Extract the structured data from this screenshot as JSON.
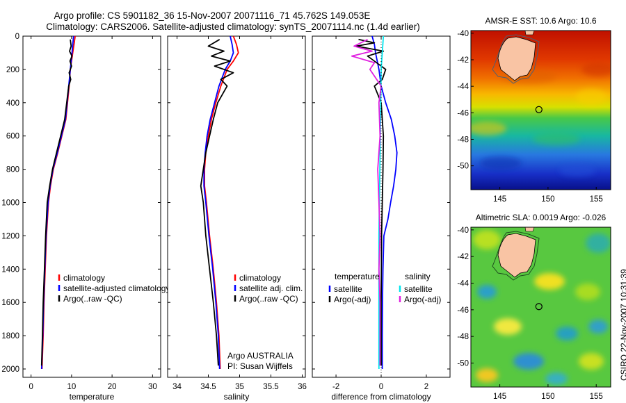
{
  "header": {
    "line1": "Argo profile: CS 5901182_36 15-Nov-2007 20071116_71 45.762S 149.053E",
    "line2": "Climatology: CARS2006. Satellite-adjusted climatology: synTS_20071114.nc (1.4d earlier)"
  },
  "stamp": "CSIRO 22-Nov-2007 10:31:39",
  "colors": {
    "clim": "#ff0000",
    "sat": "#0000ff",
    "argo": "#000000",
    "sal_sat": "#00e5ee",
    "sal_argo": "#e020e0"
  },
  "chart_data": [
    {
      "type": "line",
      "id": "temperature",
      "xlabel": "temperature",
      "ylabel": "",
      "xlim": [
        -2,
        32
      ],
      "ylim": [
        2050,
        0
      ],
      "xticks": [
        0,
        10,
        20,
        30
      ],
      "yticks": [
        0,
        200,
        400,
        600,
        800,
        1000,
        1200,
        1400,
        1600,
        1800,
        2000
      ],
      "xtick_labels": [
        "0",
        "10",
        "20",
        "30"
      ],
      "ytick_labels": [
        "0",
        "200",
        "400",
        "600",
        "800",
        "1000",
        "1200",
        "1400",
        "1600",
        "1800",
        "2000"
      ],
      "legend": [
        "climatology",
        "satellite-adjusted climatology",
        "Argo(..raw -QC)"
      ],
      "series": [
        {
          "name": "climatology",
          "color": "#ff0000",
          "x": [
            10.9,
            10.6,
            10.3,
            10.0,
            9.7,
            9.4,
            9.0,
            8.6,
            7.6,
            6.6,
            5.5,
            4.8,
            4.3,
            3.8,
            3.5,
            3.2,
            3.0,
            2.7
          ],
          "y": [
            0,
            50,
            100,
            150,
            200,
            300,
            400,
            500,
            600,
            700,
            800,
            900,
            1000,
            1200,
            1400,
            1600,
            1800,
            2000
          ]
        },
        {
          "name": "satellite-adjusted climatology",
          "color": "#0000ff",
          "x": [
            10.5,
            10.3,
            10.1,
            9.9,
            9.7,
            9.3,
            8.9,
            8.5,
            7.5,
            6.5,
            5.4,
            4.7,
            4.2,
            3.7,
            3.4,
            3.1,
            2.9,
            2.6
          ],
          "y": [
            0,
            50,
            100,
            150,
            200,
            300,
            400,
            500,
            600,
            700,
            800,
            900,
            1000,
            1200,
            1400,
            1600,
            1800,
            2000
          ]
        },
        {
          "name": "Argo(..raw -QC)",
          "color": "#000000",
          "x": [
            9.7,
            9.9,
            9.5,
            10.1,
            9.6,
            10.0,
            9.4,
            9.8,
            9.3,
            8.8,
            8.3,
            7.3,
            6.3,
            5.3,
            4.6,
            4.0,
            3.6,
            3.3,
            3.0,
            2.8,
            2.6
          ],
          "y": [
            20,
            60,
            90,
            120,
            150,
            180,
            220,
            260,
            300,
            400,
            500,
            600,
            700,
            800,
            900,
            1000,
            1200,
            1400,
            1600,
            1800,
            1980
          ]
        }
      ]
    },
    {
      "type": "line",
      "id": "salinity",
      "xlabel": "salinity",
      "xlim": [
        33.85,
        36.05
      ],
      "ylim": [
        2050,
        0
      ],
      "xticks": [
        34,
        34.5,
        35,
        35.5,
        36
      ],
      "xtick_labels": [
        "34",
        "34.5",
        "35",
        "35.5",
        "36"
      ],
      "legend": [
        "climatology",
        "satellite adj. clim.",
        "Argo(..raw -QC)"
      ],
      "annotation": [
        "Argo AUSTRALIA",
        "PI: Susan Wijffels"
      ],
      "series": [
        {
          "name": "climatology",
          "color": "#ff0000",
          "x": [
            34.9,
            34.95,
            34.98,
            34.9,
            34.8,
            34.7,
            34.62,
            34.55,
            34.5,
            34.46,
            34.44,
            34.44,
            34.47,
            34.52,
            34.58,
            34.63,
            34.67,
            34.69
          ],
          "y": [
            0,
            50,
            100,
            150,
            200,
            300,
            400,
            500,
            600,
            700,
            800,
            900,
            1000,
            1200,
            1400,
            1600,
            1800,
            2000
          ]
        },
        {
          "name": "satellite adj. clim.",
          "color": "#0000ff",
          "x": [
            34.85,
            34.88,
            34.9,
            34.85,
            34.77,
            34.67,
            34.6,
            34.53,
            34.48,
            34.45,
            34.43,
            34.43,
            34.46,
            34.51,
            34.57,
            34.62,
            34.66,
            34.68
          ],
          "y": [
            0,
            50,
            100,
            150,
            200,
            300,
            400,
            500,
            600,
            700,
            800,
            900,
            1000,
            1200,
            1400,
            1600,
            1800,
            2000
          ]
        },
        {
          "name": "Argo(..raw -QC)",
          "color": "#000000",
          "x": [
            34.68,
            34.5,
            34.75,
            34.55,
            34.85,
            34.6,
            34.9,
            34.7,
            34.8,
            34.65,
            34.58,
            34.52,
            34.46,
            34.42,
            34.38,
            34.42,
            34.46,
            34.52,
            34.58,
            34.63,
            34.66
          ],
          "y": [
            20,
            60,
            90,
            120,
            150,
            180,
            220,
            260,
            300,
            400,
            500,
            600,
            700,
            800,
            900,
            1000,
            1200,
            1400,
            1600,
            1800,
            1980
          ]
        }
      ]
    },
    {
      "type": "line",
      "id": "difference",
      "xlabel": "difference from climatology",
      "xlim": [
        -3.05,
        3.05
      ],
      "ylim": [
        2050,
        0
      ],
      "xticks": [
        -2,
        0,
        2
      ],
      "xtick_labels": [
        "-2",
        "0",
        "2"
      ],
      "legend_headers": [
        "temperature",
        "salinity"
      ],
      "legend_left": [
        "satellite",
        "Argo(-adj)"
      ],
      "legend_right": [
        "satellite",
        "Argo(-adj)"
      ],
      "series": [
        {
          "name": "temperature satellite",
          "color": "#0000ff",
          "x": [
            -0.4,
            -0.3,
            -0.25,
            -0.1,
            0.0,
            0.2,
            0.45,
            0.6,
            0.7,
            0.65,
            0.55,
            0.42,
            0.3,
            0.12,
            0.08,
            0.06,
            0.05,
            0.05
          ],
          "y": [
            0,
            50,
            100,
            200,
            300,
            400,
            500,
            600,
            700,
            800,
            900,
            1000,
            1100,
            1200,
            1400,
            1600,
            1800,
            2000
          ]
        },
        {
          "name": "temperature Argo(-adj)",
          "color": "#000000",
          "x": [
            -1.0,
            -0.3,
            -1.1,
            0.1,
            -0.6,
            -0.2,
            0.2,
            0.05,
            -0.3,
            0.0,
            0.1,
            0.08,
            0.05,
            0.02,
            0.0,
            0.0
          ],
          "y": [
            20,
            40,
            60,
            90,
            120,
            160,
            200,
            260,
            300,
            400,
            600,
            800,
            1000,
            1200,
            1600,
            1980
          ]
        },
        {
          "name": "salinity satellite",
          "color": "#00e5ee",
          "x": [
            0.1,
            0.05,
            0.0,
            -0.02,
            -0.04,
            -0.06,
            -0.08,
            -0.1,
            -0.1,
            -0.1,
            -0.1,
            -0.1,
            -0.1
          ],
          "y": [
            0,
            100,
            200,
            400,
            600,
            800,
            1000,
            1200,
            1400,
            1600,
            1800,
            1900,
            2000
          ]
        },
        {
          "name": "salinity Argo(-adj)",
          "color": "#e020e0",
          "x": [
            -0.6,
            -1.2,
            -0.4,
            -1.3,
            -0.3,
            -0.5,
            -0.2,
            0.0,
            -0.1,
            -0.05,
            -0.15,
            -0.1,
            -0.05,
            -0.1,
            -0.05,
            -0.05
          ],
          "y": [
            20,
            60,
            90,
            120,
            160,
            200,
            260,
            300,
            400,
            600,
            800,
            1000,
            1200,
            1400,
            1600,
            1980
          ]
        }
      ]
    },
    {
      "type": "heatmap",
      "id": "sst_map",
      "title": "AMSR-E SST: 10.6 Argo: 10.6",
      "xlim": [
        142,
        156.5
      ],
      "ylim": [
        -51.8,
        -39.8
      ],
      "xticks": [
        145,
        150,
        155
      ],
      "xtick_labels": [
        "145",
        "150",
        "155"
      ],
      "yticks": [
        -40,
        -42,
        -44,
        -46,
        -48,
        -50
      ],
      "ytick_labels": [
        "-40",
        "-42",
        "-44",
        "-46",
        "-48",
        "-50"
      ],
      "marker": {
        "lon": 149.053,
        "lat": -45.762
      }
    },
    {
      "type": "heatmap",
      "id": "sla_map",
      "title": "Altimetric SLA: 0.0019 Argo: -0.026",
      "xlim": [
        142,
        156.5
      ],
      "ylim": [
        -51.8,
        -39.8
      ],
      "xticks": [
        145,
        150,
        155
      ],
      "xtick_labels": [
        "145",
        "150",
        "155"
      ],
      "yticks": [
        -40,
        -42,
        -44,
        -46,
        -48,
        -50
      ],
      "ytick_labels": [
        "-40",
        "-42",
        "-44",
        "-46",
        "-48",
        "-50"
      ],
      "marker": {
        "lon": 149.053,
        "lat": -45.762
      }
    }
  ]
}
